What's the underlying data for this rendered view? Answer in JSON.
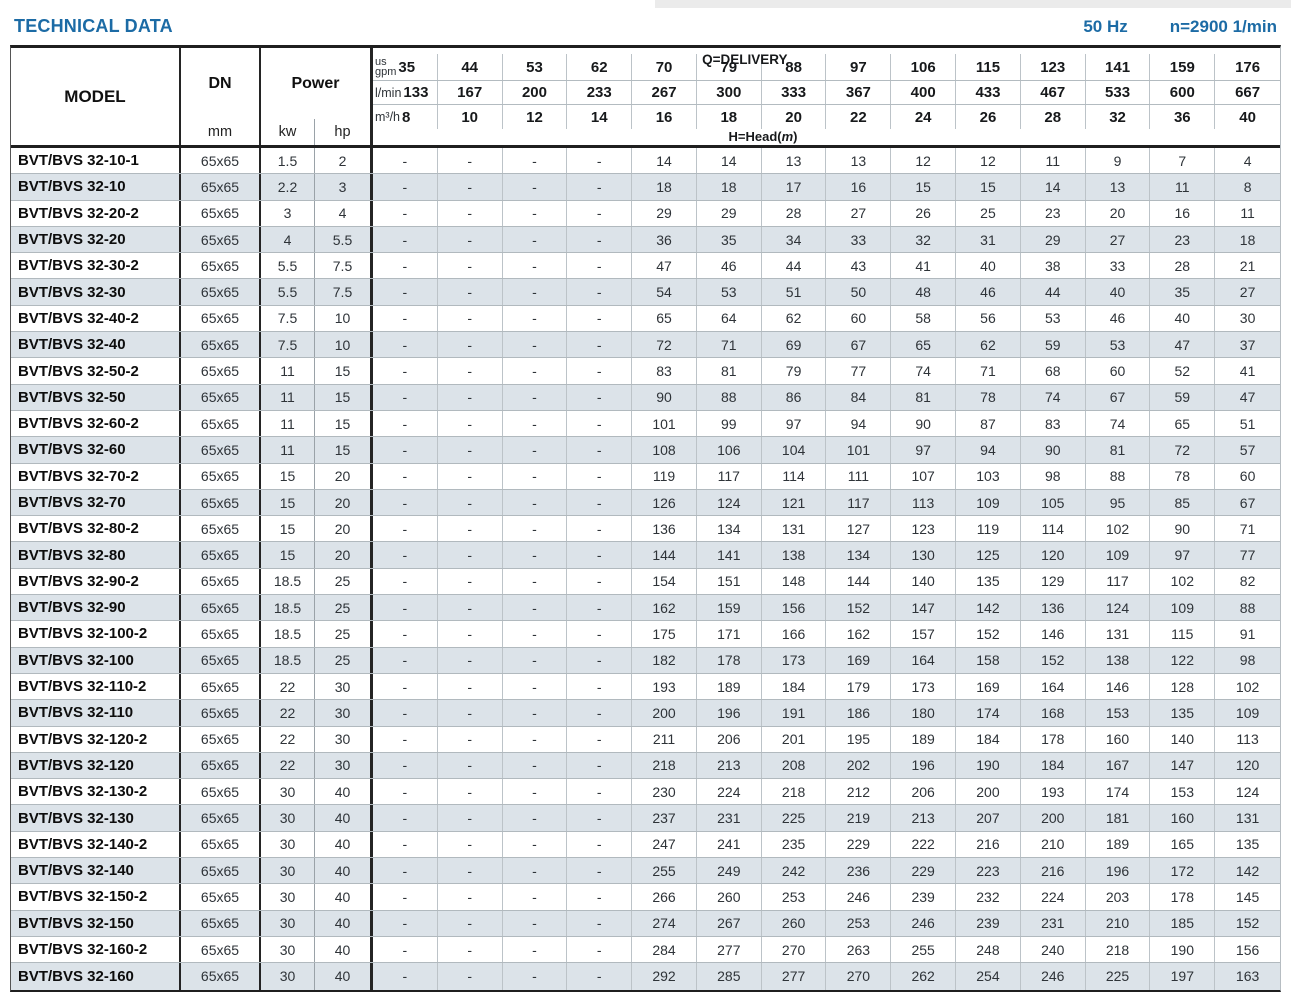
{
  "page": {
    "title": "TECHNICAL DATA",
    "frequency": "50 Hz",
    "speed": "n=2900 1/min"
  },
  "colors": {
    "accent_blue": "#1c6ba5",
    "alt_row": "#dce3e9",
    "border_dark": "#1f1f1f",
    "line_gray": "#b3bbc0"
  },
  "table": {
    "model_header": "MODEL",
    "dn_header": "DN",
    "dn_unit": "mm",
    "power_header": "Power",
    "power_unit_kw": "kw",
    "power_unit_hp": "hp",
    "delivery_label": "Q=DELIVERY",
    "head_label_prefix": "H=Head(",
    "head_label_m": "m",
    "head_label_suffix": ")",
    "unit_rows": [
      {
        "label_line1": "us",
        "label_line2": "gpm",
        "values": [
          "35",
          "44",
          "53",
          "62",
          "70",
          "79",
          "88",
          "97",
          "106",
          "115",
          "123",
          "141",
          "159",
          "176"
        ]
      },
      {
        "label": "l/min",
        "values": [
          "133",
          "167",
          "200",
          "233",
          "267",
          "300",
          "333",
          "367",
          "400",
          "433",
          "467",
          "533",
          "600",
          "667"
        ]
      },
      {
        "label": "m³/h",
        "values": [
          "8",
          "10",
          "12",
          "14",
          "16",
          "18",
          "20",
          "22",
          "24",
          "26",
          "28",
          "32",
          "36",
          "40"
        ]
      }
    ],
    "rows": [
      {
        "model": "BVT/BVS 32-10-1",
        "dn": "65x65",
        "kw": "1.5",
        "hp": "2",
        "head": [
          "-",
          "-",
          "-",
          "-",
          "14",
          "14",
          "13",
          "13",
          "12",
          "12",
          "11",
          "9",
          "7",
          "4"
        ]
      },
      {
        "model": "BVT/BVS 32-10",
        "dn": "65x65",
        "kw": "2.2",
        "hp": "3",
        "head": [
          "-",
          "-",
          "-",
          "-",
          "18",
          "18",
          "17",
          "16",
          "15",
          "15",
          "14",
          "13",
          "11",
          "8"
        ]
      },
      {
        "model": "BVT/BVS 32-20-2",
        "dn": "65x65",
        "kw": "3",
        "hp": "4",
        "head": [
          "-",
          "-",
          "-",
          "-",
          "29",
          "29",
          "28",
          "27",
          "26",
          "25",
          "23",
          "20",
          "16",
          "11"
        ]
      },
      {
        "model": "BVT/BVS 32-20",
        "dn": "65x65",
        "kw": "4",
        "hp": "5.5",
        "head": [
          "-",
          "-",
          "-",
          "-",
          "36",
          "35",
          "34",
          "33",
          "32",
          "31",
          "29",
          "27",
          "23",
          "18"
        ]
      },
      {
        "model": "BVT/BVS 32-30-2",
        "dn": "65x65",
        "kw": "5.5",
        "hp": "7.5",
        "head": [
          "-",
          "-",
          "-",
          "-",
          "47",
          "46",
          "44",
          "43",
          "41",
          "40",
          "38",
          "33",
          "28",
          "21"
        ]
      },
      {
        "model": "BVT/BVS 32-30",
        "dn": "65x65",
        "kw": "5.5",
        "hp": "7.5",
        "head": [
          "-",
          "-",
          "-",
          "-",
          "54",
          "53",
          "51",
          "50",
          "48",
          "46",
          "44",
          "40",
          "35",
          "27"
        ]
      },
      {
        "model": "BVT/BVS 32-40-2",
        "dn": "65x65",
        "kw": "7.5",
        "hp": "10",
        "head": [
          "-",
          "-",
          "-",
          "-",
          "65",
          "64",
          "62",
          "60",
          "58",
          "56",
          "53",
          "46",
          "40",
          "30"
        ]
      },
      {
        "model": "BVT/BVS 32-40",
        "dn": "65x65",
        "kw": "7.5",
        "hp": "10",
        "head": [
          "-",
          "-",
          "-",
          "-",
          "72",
          "71",
          "69",
          "67",
          "65",
          "62",
          "59",
          "53",
          "47",
          "37"
        ]
      },
      {
        "model": "BVT/BVS 32-50-2",
        "dn": "65x65",
        "kw": "11",
        "hp": "15",
        "head": [
          "-",
          "-",
          "-",
          "-",
          "83",
          "81",
          "79",
          "77",
          "74",
          "71",
          "68",
          "60",
          "52",
          "41"
        ]
      },
      {
        "model": "BVT/BVS 32-50",
        "dn": "65x65",
        "kw": "11",
        "hp": "15",
        "head": [
          "-",
          "-",
          "-",
          "-",
          "90",
          "88",
          "86",
          "84",
          "81",
          "78",
          "74",
          "67",
          "59",
          "47"
        ]
      },
      {
        "model": "BVT/BVS 32-60-2",
        "dn": "65x65",
        "kw": "11",
        "hp": "15",
        "head": [
          "-",
          "-",
          "-",
          "-",
          "101",
          "99",
          "97",
          "94",
          "90",
          "87",
          "83",
          "74",
          "65",
          "51"
        ]
      },
      {
        "model": "BVT/BVS 32-60",
        "dn": "65x65",
        "kw": "11",
        "hp": "15",
        "head": [
          "-",
          "-",
          "-",
          "-",
          "108",
          "106",
          "104",
          "101",
          "97",
          "94",
          "90",
          "81",
          "72",
          "57"
        ]
      },
      {
        "model": "BVT/BVS 32-70-2",
        "dn": "65x65",
        "kw": "15",
        "hp": "20",
        "head": [
          "-",
          "-",
          "-",
          "-",
          "119",
          "117",
          "114",
          "111",
          "107",
          "103",
          "98",
          "88",
          "78",
          "60"
        ]
      },
      {
        "model": "BVT/BVS 32-70",
        "dn": "65x65",
        "kw": "15",
        "hp": "20",
        "head": [
          "-",
          "-",
          "-",
          "-",
          "126",
          "124",
          "121",
          "117",
          "113",
          "109",
          "105",
          "95",
          "85",
          "67"
        ]
      },
      {
        "model": "BVT/BVS 32-80-2",
        "dn": "65x65",
        "kw": "15",
        "hp": "20",
        "head": [
          "-",
          "-",
          "-",
          "-",
          "136",
          "134",
          "131",
          "127",
          "123",
          "119",
          "114",
          "102",
          "90",
          "71"
        ]
      },
      {
        "model": "BVT/BVS 32-80",
        "dn": "65x65",
        "kw": "15",
        "hp": "20",
        "head": [
          "-",
          "-",
          "-",
          "-",
          "144",
          "141",
          "138",
          "134",
          "130",
          "125",
          "120",
          "109",
          "97",
          "77"
        ]
      },
      {
        "model": "BVT/BVS 32-90-2",
        "dn": "65x65",
        "kw": "18.5",
        "hp": "25",
        "head": [
          "-",
          "-",
          "-",
          "-",
          "154",
          "151",
          "148",
          "144",
          "140",
          "135",
          "129",
          "117",
          "102",
          "82"
        ]
      },
      {
        "model": "BVT/BVS 32-90",
        "dn": "65x65",
        "kw": "18.5",
        "hp": "25",
        "head": [
          "-",
          "-",
          "-",
          "-",
          "162",
          "159",
          "156",
          "152",
          "147",
          "142",
          "136",
          "124",
          "109",
          "88"
        ]
      },
      {
        "model": "BVT/BVS 32-100-2",
        "dn": "65x65",
        "kw": "18.5",
        "hp": "25",
        "head": [
          "-",
          "-",
          "-",
          "-",
          "175",
          "171",
          "166",
          "162",
          "157",
          "152",
          "146",
          "131",
          "115",
          "91"
        ]
      },
      {
        "model": "BVT/BVS 32-100",
        "dn": "65x65",
        "kw": "18.5",
        "hp": "25",
        "head": [
          "-",
          "-",
          "-",
          "-",
          "182",
          "178",
          "173",
          "169",
          "164",
          "158",
          "152",
          "138",
          "122",
          "98"
        ]
      },
      {
        "model": "BVT/BVS 32-110-2",
        "dn": "65x65",
        "kw": "22",
        "hp": "30",
        "head": [
          "-",
          "-",
          "-",
          "-",
          "193",
          "189",
          "184",
          "179",
          "173",
          "169",
          "164",
          "146",
          "128",
          "102"
        ]
      },
      {
        "model": "BVT/BVS 32-110",
        "dn": "65x65",
        "kw": "22",
        "hp": "30",
        "head": [
          "-",
          "-",
          "-",
          "-",
          "200",
          "196",
          "191",
          "186",
          "180",
          "174",
          "168",
          "153",
          "135",
          "109"
        ]
      },
      {
        "model": "BVT/BVS 32-120-2",
        "dn": "65x65",
        "kw": "22",
        "hp": "30",
        "head": [
          "-",
          "-",
          "-",
          "-",
          "211",
          "206",
          "201",
          "195",
          "189",
          "184",
          "178",
          "160",
          "140",
          "113"
        ]
      },
      {
        "model": "BVT/BVS 32-120",
        "dn": "65x65",
        "kw": "22",
        "hp": "30",
        "head": [
          "-",
          "-",
          "-",
          "-",
          "218",
          "213",
          "208",
          "202",
          "196",
          "190",
          "184",
          "167",
          "147",
          "120"
        ]
      },
      {
        "model": "BVT/BVS 32-130-2",
        "dn": "65x65",
        "kw": "30",
        "hp": "40",
        "head": [
          "-",
          "-",
          "-",
          "-",
          "230",
          "224",
          "218",
          "212",
          "206",
          "200",
          "193",
          "174",
          "153",
          "124"
        ]
      },
      {
        "model": "BVT/BVS 32-130",
        "dn": "65x65",
        "kw": "30",
        "hp": "40",
        "head": [
          "-",
          "-",
          "-",
          "-",
          "237",
          "231",
          "225",
          "219",
          "213",
          "207",
          "200",
          "181",
          "160",
          "131"
        ]
      },
      {
        "model": "BVT/BVS 32-140-2",
        "dn": "65x65",
        "kw": "30",
        "hp": "40",
        "head": [
          "-",
          "-",
          "-",
          "-",
          "247",
          "241",
          "235",
          "229",
          "222",
          "216",
          "210",
          "189",
          "165",
          "135"
        ]
      },
      {
        "model": "BVT/BVS 32-140",
        "dn": "65x65",
        "kw": "30",
        "hp": "40",
        "head": [
          "-",
          "-",
          "-",
          "-",
          "255",
          "249",
          "242",
          "236",
          "229",
          "223",
          "216",
          "196",
          "172",
          "142"
        ]
      },
      {
        "model": "BVT/BVS 32-150-2",
        "dn": "65x65",
        "kw": "30",
        "hp": "40",
        "head": [
          "-",
          "-",
          "-",
          "-",
          "266",
          "260",
          "253",
          "246",
          "239",
          "232",
          "224",
          "203",
          "178",
          "145"
        ]
      },
      {
        "model": "BVT/BVS 32-150",
        "dn": "65x65",
        "kw": "30",
        "hp": "40",
        "head": [
          "-",
          "-",
          "-",
          "-",
          "274",
          "267",
          "260",
          "253",
          "246",
          "239",
          "231",
          "210",
          "185",
          "152"
        ]
      },
      {
        "model": "BVT/BVS 32-160-2",
        "dn": "65x65",
        "kw": "30",
        "hp": "40",
        "head": [
          "-",
          "-",
          "-",
          "-",
          "284",
          "277",
          "270",
          "263",
          "255",
          "248",
          "240",
          "218",
          "190",
          "156"
        ]
      },
      {
        "model": "BVT/BVS 32-160",
        "dn": "65x65",
        "kw": "30",
        "hp": "40",
        "head": [
          "-",
          "-",
          "-",
          "-",
          "292",
          "285",
          "277",
          "270",
          "262",
          "254",
          "246",
          "225",
          "197",
          "163"
        ]
      }
    ]
  }
}
